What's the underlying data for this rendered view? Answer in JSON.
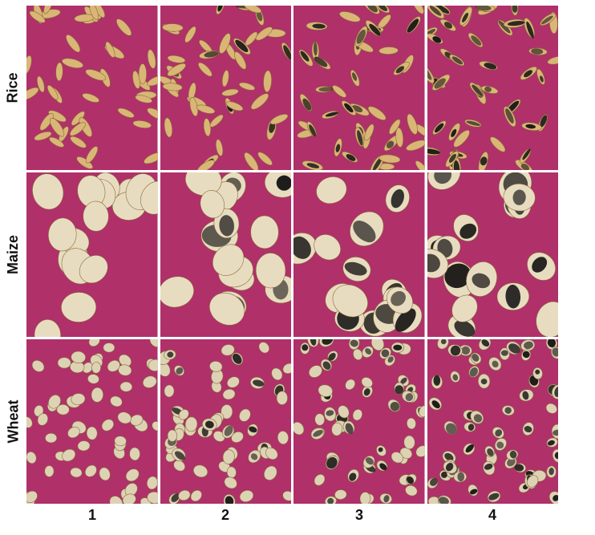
{
  "rows": [
    {
      "label": "Rice",
      "kind": "rice"
    },
    {
      "label": "Maize",
      "kind": "maize"
    },
    {
      "label": "Wheat",
      "kind": "wheat"
    }
  ],
  "columns": [
    "1",
    "2",
    "3",
    "4"
  ],
  "colors": {
    "background_mat": "#b0306a",
    "rice_husk": "#d9b676",
    "maize_kernel": "#e8dcc0",
    "wheat_kernel": "#ddd2b4",
    "mold_black": "#1c1a18"
  }
}
